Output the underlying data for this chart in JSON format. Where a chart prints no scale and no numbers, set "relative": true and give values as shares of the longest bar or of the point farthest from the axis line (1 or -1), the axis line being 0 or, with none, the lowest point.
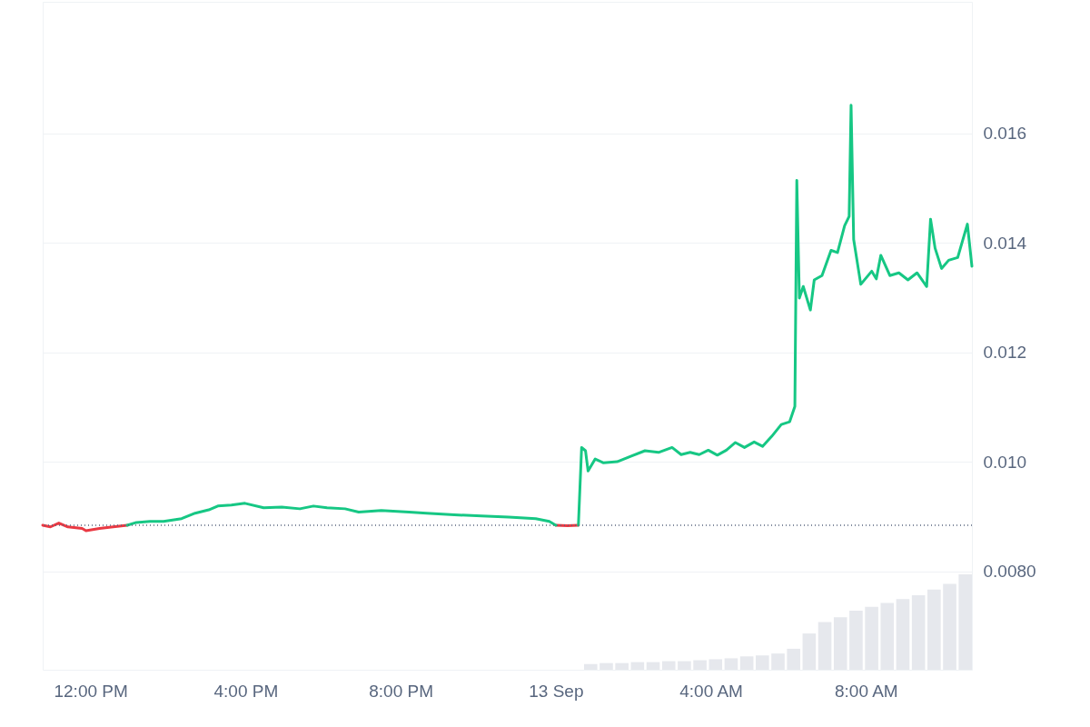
{
  "chart_data": [
    {
      "type": "line",
      "x": [
        "--09-12T10:46",
        "--09-12T10:58",
        "--09-12T11:11",
        "--09-12T11:25",
        "--09-12T11:47",
        "--09-12T11:53",
        "--09-12T12:14",
        "--09-12T12:35",
        "--09-12T12:57",
        "--09-12T13:11",
        "--09-12T13:32",
        "--09-12T13:53",
        "--09-12T14:21",
        "--09-12T14:42",
        "--09-12T15:03",
        "--09-12T15:17",
        "--09-12T15:38",
        "--09-12T15:59",
        "--09-12T16:28",
        "--09-12T16:56",
        "--09-12T17:24",
        "--09-12T17:45",
        "--09-12T18:06",
        "--09-12T18:34",
        "--09-12T18:55",
        "--09-12T19:30",
        "--09-12T20:13",
        "--09-12T20:40",
        "--09-12T21:23",
        "--09-12T22:05",
        "--09-12T22:47",
        "--09-12T23:29",
        "--09-12T23:50",
        "--09-13T00:00",
        "--09-13T00:18",
        "--09-13T00:35",
        "--09-13T00:40",
        "--09-13T00:46",
        "--09-13T00:50",
        "--09-13T01:01",
        "--09-13T01:14",
        "--09-13T01:35",
        "--09-13T01:56",
        "--09-13T02:18",
        "--09-13T02:39",
        "--09-13T03:00",
        "--09-13T03:14",
        "--09-13T03:28",
        "--09-13T03:42",
        "--09-13T03:56",
        "--09-13T04:10",
        "--09-13T04:24",
        "--09-13T04:38",
        "--09-13T04:52",
        "--09-13T05:07",
        "--09-13T05:20",
        "--09-13T05:34",
        "--09-13T05:49",
        "--09-13T06:02",
        "--09-13T06:10",
        "--09-13T06:13",
        "--09-13T06:17",
        "--09-13T06:23",
        "--09-13T06:34",
        "--09-13T06:40",
        "--09-13T06:52",
        "--09-13T07:06",
        "--09-13T07:16",
        "--09-13T07:27",
        "--09-13T07:34",
        "--09-13T07:37",
        "--09-13T07:41",
        "--09-13T07:52",
        "--09-13T08:09",
        "--09-13T08:16",
        "--09-13T08:23",
        "--09-13T08:37",
        "--09-13T08:51",
        "--09-13T09:05",
        "--09-13T09:19",
        "--09-13T09:34",
        "--09-13T09:40",
        "--09-13T09:47",
        "--09-13T09:57",
        "--09-13T10:08",
        "--09-13T10:22",
        "--09-13T10:37",
        "--09-13T10:44"
      ],
      "series": [
        {
          "color": "#ea3943",
          "values": [
            0.00884,
            0.00881,
            0.00888,
            0.00881,
            0.00878,
            0.00874,
            0.00878,
            0.00881,
            0.00884,
            null,
            null,
            null,
            null,
            null,
            null,
            null,
            null,
            null,
            null,
            null,
            null,
            null,
            null,
            null,
            null,
            null,
            null,
            null,
            null,
            null,
            null,
            null,
            null,
            0.00884,
            0.00883,
            0.00884,
            null,
            null,
            null,
            null,
            null,
            null,
            null,
            null,
            null,
            null,
            null,
            null,
            null,
            null,
            null,
            null,
            null,
            null,
            null,
            null,
            null,
            null,
            null,
            null,
            null,
            null,
            null,
            null,
            null,
            null,
            null,
            null,
            null,
            null,
            null,
            null,
            null,
            null,
            null,
            null,
            null,
            null,
            null,
            null,
            null,
            null,
            null,
            null,
            null,
            null,
            null,
            null
          ]
        },
        {
          "color": "#16c784",
          "values": [
            null,
            null,
            null,
            null,
            null,
            null,
            null,
            null,
            0.00884,
            0.00889,
            0.00891,
            0.00891,
            0.00896,
            0.00906,
            0.00912,
            0.00919,
            0.00921,
            0.00924,
            0.00916,
            0.00917,
            0.00914,
            0.00919,
            0.00916,
            0.00914,
            0.00908,
            0.00911,
            0.00908,
            0.00906,
            0.00903,
            0.00901,
            0.00899,
            0.00896,
            0.00891,
            0.00884,
            null,
            0.00884,
            0.01026,
            0.0102,
            0.00983,
            0.01005,
            0.00998,
            0.01,
            0.0101,
            0.0102,
            0.01017,
            0.01026,
            0.01013,
            0.01017,
            0.01013,
            0.01021,
            0.01012,
            0.01021,
            0.01035,
            0.01026,
            0.01036,
            0.01028,
            0.01046,
            0.01068,
            0.01073,
            0.01101,
            0.01514,
            0.01299,
            0.0132,
            0.01277,
            0.01332,
            0.0134,
            0.01386,
            0.01382,
            0.01431,
            0.01448,
            0.01651,
            0.01406,
            0.01324,
            0.01348,
            0.01334,
            0.01377,
            0.0134,
            0.01345,
            0.01332,
            0.01345,
            0.0132,
            0.01443,
            0.0139,
            0.01353,
            0.01368,
            0.01373,
            0.01434,
            0.01357
          ]
        }
      ],
      "xlim": [
        "--09-12T10:46",
        "--09-13T10:44"
      ],
      "xticks": [
        {
          "value": "--09-12T12:00",
          "label": "12:00 PM"
        },
        {
          "value": "--09-12T16:00",
          "label": "4:00 PM"
        },
        {
          "value": "--09-12T20:00",
          "label": "8:00 PM"
        },
        {
          "value": "--09-13T00:00",
          "label": "13 Sep"
        },
        {
          "value": "--09-13T04:00",
          "label": "4:00 AM"
        },
        {
          "value": "--09-13T08:00",
          "label": "8:00 AM"
        }
      ],
      "ylim": [
        0.0062,
        0.0184
      ],
      "yticks": [
        {
          "value": 0.008,
          "label": "0.0080"
        },
        {
          "value": 0.01,
          "label": "0.010"
        },
        {
          "value": 0.012,
          "label": "0.012"
        },
        {
          "value": 0.014,
          "label": "0.014"
        },
        {
          "value": 0.016,
          "label": "0.016"
        }
      ],
      "ref_lines": [
        {
          "axis": "y",
          "value": 0.00884,
          "color": "#58667e",
          "line_style": "dotted"
        }
      ],
      "grid": "y"
    },
    {
      "type": "bar",
      "relative": true,
      "color": "#e6e8ed",
      "categories": [
        null,
        null,
        null,
        null,
        null,
        null,
        null,
        null,
        null,
        null,
        null,
        null,
        null,
        null,
        null,
        null,
        null,
        null,
        null,
        null,
        null,
        null,
        null,
        null,
        null
      ],
      "values": [
        0.06,
        0.07,
        0.07,
        0.08,
        0.08,
        0.09,
        0.09,
        0.1,
        0.11,
        0.12,
        0.14,
        0.15,
        0.17,
        0.22,
        0.38,
        0.5,
        0.55,
        0.62,
        0.66,
        0.7,
        0.74,
        0.78,
        0.84,
        0.9,
        1.0
      ]
    }
  ]
}
